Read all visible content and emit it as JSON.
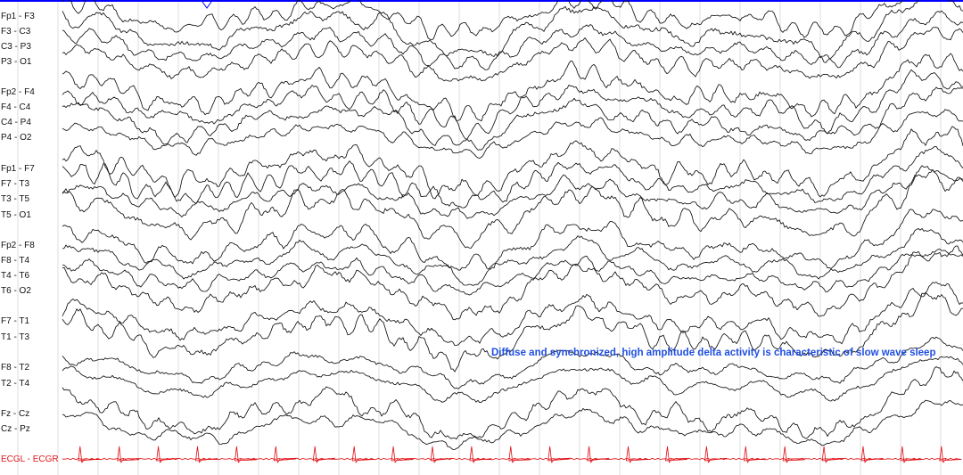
{
  "chart_data": {
    "type": "line",
    "title": "",
    "annotation": "Diffuse and synchronized, high amplitude delta activity is characteristic of slow wave sleep",
    "grid": true,
    "time_axis_labels": "none",
    "channels": [
      {
        "name": "Fp1 - F3",
        "group": "left-parasagittal",
        "color": "#111111"
      },
      {
        "name": "F3 - C3",
        "group": "left-parasagittal",
        "color": "#111111"
      },
      {
        "name": "C3 - P3",
        "group": "left-parasagittal",
        "color": "#111111"
      },
      {
        "name": "P3 - O1",
        "group": "left-parasagittal",
        "color": "#111111"
      },
      {
        "name": "Fp2 - F4",
        "group": "right-parasagittal",
        "color": "#111111"
      },
      {
        "name": "F4 - C4",
        "group": "right-parasagittal",
        "color": "#111111"
      },
      {
        "name": "C4 - P4",
        "group": "right-parasagittal",
        "color": "#111111"
      },
      {
        "name": "P4 - O2",
        "group": "right-parasagittal",
        "color": "#111111"
      },
      {
        "name": "Fp1 - F7",
        "group": "left-temporal",
        "color": "#111111"
      },
      {
        "name": "F7 - T3",
        "group": "left-temporal",
        "color": "#111111"
      },
      {
        "name": "T3 - T5",
        "group": "left-temporal",
        "color": "#111111"
      },
      {
        "name": "T5 - O1",
        "group": "left-temporal",
        "color": "#111111"
      },
      {
        "name": "Fp2 - F8",
        "group": "right-temporal",
        "color": "#111111"
      },
      {
        "name": "F8 - T4",
        "group": "right-temporal",
        "color": "#111111"
      },
      {
        "name": "T4 - T6",
        "group": "right-temporal",
        "color": "#111111"
      },
      {
        "name": "T6 - O2",
        "group": "right-temporal",
        "color": "#111111"
      },
      {
        "name": "F7 - T1",
        "group": "left-anterior-temporal",
        "color": "#111111"
      },
      {
        "name": "T1 - T3",
        "group": "left-anterior-temporal",
        "color": "#111111"
      },
      {
        "name": "F8 - T2",
        "group": "right-anterior-temporal",
        "color": "#111111"
      },
      {
        "name": "T2 - T4",
        "group": "right-anterior-temporal",
        "color": "#111111"
      },
      {
        "name": "Fz - Cz",
        "group": "midline",
        "color": "#111111"
      },
      {
        "name": "Cz - Pz",
        "group": "midline",
        "color": "#111111"
      },
      {
        "name": "ECGL - ECGR",
        "group": "ecg",
        "color": "#e0161b"
      }
    ],
    "dominant_rhythm": "delta",
    "ecg_beats_visible": 23
  },
  "colors": {
    "trace": "#111111",
    "ecg": "#e0161b",
    "annotation": "#1f4fe0",
    "grid": "#dcdcdc",
    "top_border": "#0000ff",
    "background": "#ffffff"
  }
}
